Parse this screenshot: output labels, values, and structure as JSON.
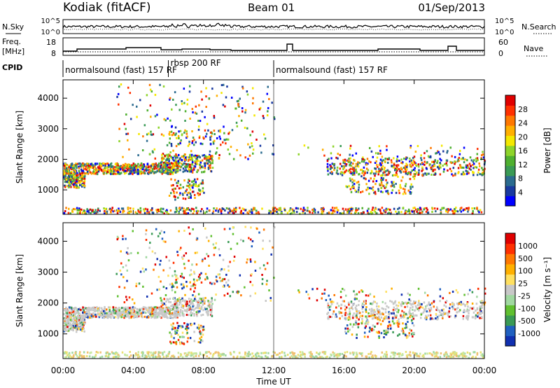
{
  "header": {
    "station": "Kodiak (fitACF)",
    "beam": "Beam 01",
    "date": "01/Sep/2013"
  },
  "summary": {
    "nsky_label": "N.Sky",
    "nsearch_label": "N.Search",
    "freq_label_line1": "Freq.",
    "freq_label_line2": "[MHz]",
    "nave_label": "Nave",
    "noise_ticks_left": [
      "10^5",
      "10^0"
    ],
    "noise_ticks_right": [
      "10^5",
      "10^0"
    ],
    "freq_ticks": [
      "18",
      "8"
    ],
    "nave_ticks": [
      "60",
      "0"
    ],
    "cpid_label": "CPID",
    "cpid_segments": [
      {
        "label": "normalsound (fast) 157 RF",
        "start": 0,
        "end": 6
      },
      {
        "label": "rbsp 200 RF",
        "start": 6,
        "end": 12
      },
      {
        "label": "normalsound (fast) 157 RF",
        "start": 12,
        "end": 24
      }
    ]
  },
  "chart_data": [
    {
      "type": "heatmap",
      "title": "",
      "xlabel": "Time UT",
      "ylabel": "Slant Range [km]",
      "xlim": [
        0,
        24
      ],
      "ylim": [
        200,
        4600
      ],
      "x_ticks": [
        "00:00",
        "04:00",
        "08:00",
        "12:00",
        "16:00",
        "20:00",
        "00:00"
      ],
      "y_ticks": [
        1000,
        2000,
        3000,
        4000
      ],
      "colorbar_label": "Power [dB]",
      "colorbar_ticks": [
        "28",
        "24",
        "20",
        "16",
        "12",
        "8",
        "4"
      ],
      "colorbar_colors": [
        "#0000ff",
        "#1a3aa0",
        "#2b6b8f",
        "#3a9a55",
        "#4fb030",
        "#8ed42a",
        "#f4e800",
        "#ffb000",
        "#ff7800",
        "#ff3000",
        "#e00000"
      ]
    },
    {
      "type": "heatmap",
      "title": "",
      "xlabel": "Time UT",
      "ylabel": "Slant Range [km]",
      "xlim": [
        0,
        24
      ],
      "ylim": [
        200,
        4600
      ],
      "x_ticks": [
        "00:00",
        "04:00",
        "08:00",
        "12:00",
        "16:00",
        "20:00",
        "00:00"
      ],
      "y_ticks": [
        1000,
        2000,
        3000,
        4000
      ],
      "colorbar_label": "Velocity [m s⁻¹]",
      "colorbar_ticks": [
        "1000",
        "500",
        "100",
        "25",
        "-25",
        "-100",
        "-500",
        "-1000"
      ],
      "colorbar_colors": [
        "#1030b0",
        "#2060c0",
        "#3a9a55",
        "#60c030",
        "#a0d8a0",
        "#c8c8c8",
        "#ffe060",
        "#ffb000",
        "#ff7800",
        "#ff3000",
        "#e00000"
      ]
    }
  ],
  "axis": {
    "xlabel": "Time UT"
  }
}
